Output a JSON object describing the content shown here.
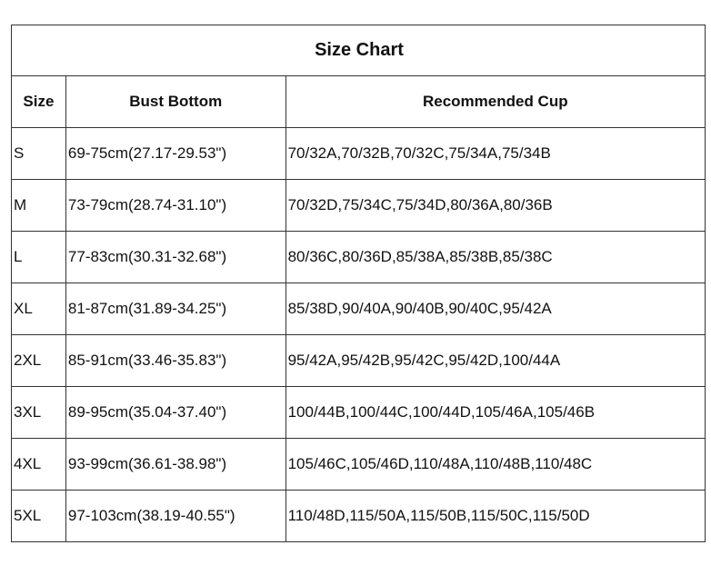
{
  "title": "Size Chart",
  "headers": [
    "Size",
    "Bust Bottom",
    "Recommended Cup"
  ],
  "rows": [
    [
      "S",
      "69-75cm(27.17-29.53\")",
      "70/32A,70/32B,70/32C,75/34A,75/34B"
    ],
    [
      "M",
      "73-79cm(28.74-31.10\")",
      "70/32D,75/34C,75/34D,80/36A,80/36B"
    ],
    [
      "L",
      "77-83cm(30.31-32.68\")",
      "80/36C,80/36D,85/38A,85/38B,85/38C"
    ],
    [
      "XL",
      "81-87cm(31.89-34.25\")",
      "85/38D,90/40A,90/40B,90/40C,95/42A"
    ],
    [
      "2XL",
      "85-91cm(33.46-35.83\")",
      "95/42A,95/42B,95/42C,95/42D,100/44A"
    ],
    [
      "3XL",
      "89-95cm(35.04-37.40\")",
      "100/44B,100/44C,100/44D,105/46A,105/46B"
    ],
    [
      "4XL",
      "93-99cm(36.61-38.98\")",
      "105/46C,105/46D,110/48A,110/48B,110/48C"
    ],
    [
      "5XL",
      "97-103cm(38.19-40.55\")",
      "110/48D,115/50A,115/50B,115/50C,115/50D"
    ]
  ]
}
